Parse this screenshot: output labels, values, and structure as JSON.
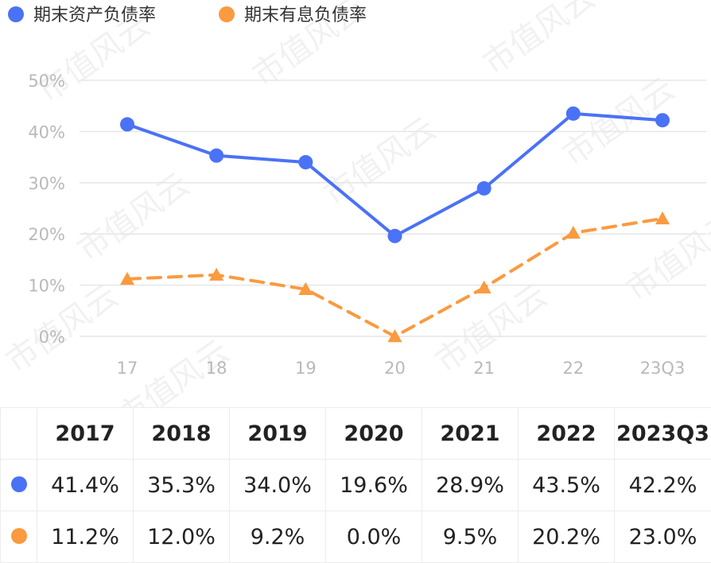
{
  "legend": {
    "series1": "期末资产负债率",
    "series2": "期末有息负债率"
  },
  "watermark_text": "市值风云",
  "chart_data": {
    "type": "line",
    "categories": [
      "17",
      "18",
      "19",
      "20",
      "21",
      "22",
      "23Q3"
    ],
    "series": [
      {
        "name": "期末资产负债率",
        "values": [
          41.4,
          35.3,
          34.0,
          19.6,
          28.9,
          43.5,
          42.2
        ],
        "color": "#4a72f5",
        "marker": "circle",
        "dash": false
      },
      {
        "name": "期末有息负债率",
        "values": [
          11.2,
          12.0,
          9.2,
          0.0,
          9.5,
          20.2,
          23.0
        ],
        "color": "#fb9a3f",
        "marker": "triangle",
        "dash": true
      }
    ],
    "y_ticks": [
      "0%",
      "10%",
      "20%",
      "30%",
      "40%",
      "50%"
    ],
    "ylim": [
      0,
      50
    ],
    "grid": true
  },
  "table": {
    "headers": [
      "2017",
      "2018",
      "2019",
      "2020",
      "2021",
      "2022",
      "2023Q3"
    ],
    "rows": [
      {
        "color": "#4a72f5",
        "cells": [
          "41.4%",
          "35.3%",
          "34.0%",
          "19.6%",
          "28.9%",
          "43.5%",
          "42.2%"
        ]
      },
      {
        "color": "#fb9a3f",
        "cells": [
          "11.2%",
          "12.0%",
          "9.2%",
          "0.0%",
          "9.5%",
          "20.2%",
          "23.0%"
        ]
      }
    ]
  }
}
